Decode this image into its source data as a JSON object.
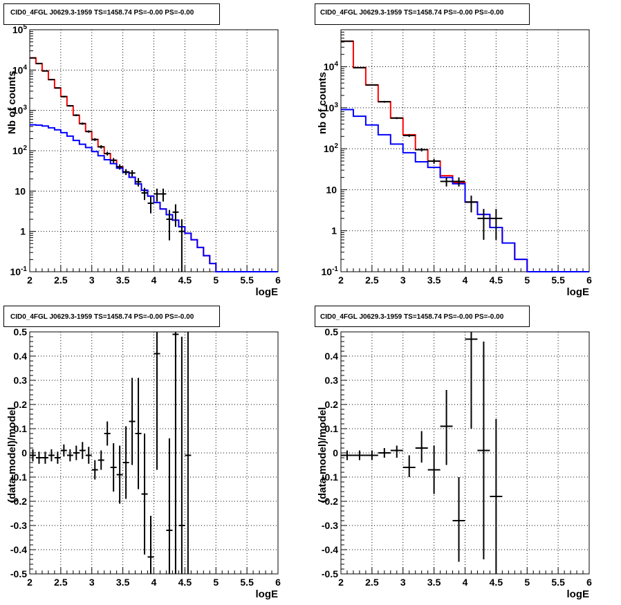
{
  "chart_data": [
    {
      "type": "line",
      "title": "CID0_4FGL J0629.3-1959 TS=1458.74 PS=-0.00 PS=-0.00",
      "xlabel": "logE",
      "ylabel": "Nb of counts",
      "xlim": [
        2,
        6
      ],
      "ylim": [
        0.1,
        100000
      ],
      "yscale": "log",
      "grid": true,
      "x_ticks": [
        "2",
        "2.5",
        "3",
        "3.5",
        "4",
        "4.5",
        "5",
        "5.5",
        "6"
      ],
      "y_ticks": [
        "10^-1",
        "1",
        "10",
        "10^2",
        "10^3",
        "10^4",
        "10^5"
      ],
      "bin_edges": [
        2.0,
        2.1,
        2.2,
        2.3,
        2.4,
        2.5,
        2.6,
        2.7,
        2.8,
        2.9,
        3.0,
        3.1,
        3.2,
        3.3,
        3.4,
        3.5,
        3.6,
        3.7,
        3.8,
        3.9,
        4.0,
        4.1,
        4.2,
        4.3,
        4.4,
        4.5,
        4.6,
        4.7,
        4.8,
        4.9,
        5.0,
        5.1,
        5.2,
        5.3,
        5.4,
        5.5,
        5.6,
        5.7,
        5.8,
        5.9,
        6.0
      ],
      "series": [
        {
          "color": "#ff0000",
          "values": [
            20000,
            14500,
            9500,
            5800,
            3600,
            2200,
            1300,
            760,
            470,
            300,
            190,
            125,
            85,
            58,
            40,
            30,
            22,
            15,
            10.5,
            7.5,
            5.2,
            3.6,
            2.6,
            1.9,
            1.3,
            0.9,
            0.62,
            0.4,
            0.25,
            0.16,
            0.1,
            0.1,
            0.1,
            0.1,
            0.1,
            0.1,
            0.1,
            0.1,
            0.1,
            0.1
          ]
        },
        {
          "color": "#0000ff",
          "values": [
            440,
            430,
            410,
            370,
            330,
            280,
            230,
            180,
            145,
            120,
            95,
            75,
            60,
            48,
            37,
            29,
            22,
            15,
            10.5,
            7.5,
            5.2,
            3.6,
            2.6,
            1.9,
            1.3,
            0.9,
            0.62,
            0.4,
            0.25,
            0.16,
            0.1,
            0.1,
            0.1,
            0.1,
            0.1,
            0.1,
            0.1,
            0.1,
            0.1,
            0.1
          ]
        }
      ],
      "points": [
        {
          "x": 2.05,
          "y": 20000,
          "lo": 19600,
          "hi": 20400
        },
        {
          "x": 2.15,
          "y": 14500,
          "lo": 14200,
          "hi": 14800
        },
        {
          "x": 2.25,
          "y": 9500,
          "lo": 9300,
          "hi": 9700
        },
        {
          "x": 2.35,
          "y": 5800,
          "lo": 5650,
          "hi": 5950
        },
        {
          "x": 2.45,
          "y": 3600,
          "lo": 3480,
          "hi": 3720
        },
        {
          "x": 2.55,
          "y": 2200,
          "lo": 2110,
          "hi": 2290
        },
        {
          "x": 2.65,
          "y": 1300,
          "lo": 1240,
          "hi": 1360
        },
        {
          "x": 2.75,
          "y": 760,
          "lo": 720,
          "hi": 800
        },
        {
          "x": 2.85,
          "y": 470,
          "lo": 440,
          "hi": 500
        },
        {
          "x": 2.95,
          "y": 300,
          "lo": 280,
          "hi": 320
        },
        {
          "x": 3.05,
          "y": 190,
          "lo": 175,
          "hi": 205
        },
        {
          "x": 3.15,
          "y": 125,
          "lo": 113,
          "hi": 137
        },
        {
          "x": 3.25,
          "y": 85,
          "lo": 76,
          "hi": 94
        },
        {
          "x": 3.35,
          "y": 58,
          "lo": 50,
          "hi": 66
        },
        {
          "x": 3.45,
          "y": 40,
          "lo": 34,
          "hi": 46
        },
        {
          "x": 3.55,
          "y": 30,
          "lo": 25,
          "hi": 35
        },
        {
          "x": 3.65,
          "y": 28,
          "lo": 23,
          "hi": 33
        },
        {
          "x": 3.75,
          "y": 17,
          "lo": 13,
          "hi": 21
        },
        {
          "x": 3.85,
          "y": 9,
          "lo": 6,
          "hi": 12
        },
        {
          "x": 3.95,
          "y": 5,
          "lo": 2.8,
          "hi": 7.2
        },
        {
          "x": 4.05,
          "y": 8.5,
          "lo": 5.5,
          "hi": 11.5
        },
        {
          "x": 4.15,
          "y": 8.5,
          "lo": 5.5,
          "hi": 11.5
        },
        {
          "x": 4.25,
          "y": 2,
          "lo": 0.6,
          "hi": 3.4
        },
        {
          "x": 4.35,
          "y": 3,
          "lo": 1.3,
          "hi": 4.7
        },
        {
          "x": 4.45,
          "y": 1,
          "lo": 0.1,
          "hi": 2
        }
      ]
    },
    {
      "type": "line",
      "title": "CID0_4FGL J0629.3-1959 TS=1458.74 PS=-0.00 PS=-0.00",
      "xlabel": "logE",
      "ylabel": "nb of counts",
      "xlim": [
        2,
        6
      ],
      "ylim": [
        0.1,
        80000
      ],
      "yscale": "log",
      "grid": true,
      "x_ticks": [
        "2",
        "2.5",
        "3",
        "3.5",
        "4",
        "4.5",
        "5",
        "5.5",
        "6"
      ],
      "y_ticks": [
        "10^-1",
        "1",
        "10",
        "10^2",
        "10^3",
        "10^4"
      ],
      "bin_edges": [
        2.0,
        2.2,
        2.4,
        2.6,
        2.8,
        3.0,
        3.2,
        3.4,
        3.6,
        3.8,
        4.0,
        4.2,
        4.4,
        4.6,
        4.8,
        5.0,
        5.2,
        5.4,
        5.6,
        5.8,
        6.0
      ],
      "series": [
        {
          "color": "#ff0000",
          "values": [
            42000,
            9500,
            3600,
            1400,
            560,
            220,
            95,
            50,
            22,
            15,
            5,
            2.5,
            1.2,
            0.5,
            0.2,
            0.1,
            0.1,
            0.1,
            0.1,
            0.1
          ]
        },
        {
          "color": "#0000ff",
          "values": [
            900,
            620,
            380,
            220,
            130,
            80,
            48,
            35,
            20,
            14,
            5,
            2.5,
            1.2,
            0.5,
            0.2,
            0.1,
            0.1,
            0.1,
            0.1,
            0.1
          ]
        }
      ],
      "points": [
        {
          "x": 2.1,
          "y": 42000,
          "lo": 41600,
          "hi": 42400
        },
        {
          "x": 2.3,
          "y": 9500,
          "lo": 9300,
          "hi": 9700
        },
        {
          "x": 2.5,
          "y": 3600,
          "lo": 3480,
          "hi": 3720
        },
        {
          "x": 2.7,
          "y": 1400,
          "lo": 1330,
          "hi": 1470
        },
        {
          "x": 2.9,
          "y": 560,
          "lo": 530,
          "hi": 590
        },
        {
          "x": 3.1,
          "y": 210,
          "lo": 195,
          "hi": 225
        },
        {
          "x": 3.3,
          "y": 95,
          "lo": 86,
          "hi": 104
        },
        {
          "x": 3.5,
          "y": 50,
          "lo": 43,
          "hi": 57
        },
        {
          "x": 3.7,
          "y": 16,
          "lo": 12,
          "hi": 20
        },
        {
          "x": 3.9,
          "y": 16,
          "lo": 12,
          "hi": 20
        },
        {
          "x": 4.1,
          "y": 5,
          "lo": 2.8,
          "hi": 7.2
        },
        {
          "x": 4.3,
          "y": 2,
          "lo": 0.6,
          "hi": 3.4
        },
        {
          "x": 4.5,
          "y": 2,
          "lo": 0.6,
          "hi": 3.4
        }
      ]
    },
    {
      "type": "scatter",
      "title": "CID0_4FGL J0629.3-1959 TS=1458.74 PS=-0.00 PS=-0.00",
      "xlabel": "logE",
      "ylabel": "(data-model)/model",
      "xlim": [
        2,
        6
      ],
      "ylim": [
        -0.5,
        0.5
      ],
      "grid": true,
      "x_ticks": [
        "2",
        "2.5",
        "3",
        "3.5",
        "4",
        "4.5",
        "5",
        "5.5",
        "6"
      ],
      "y_ticks": [
        "-0.5",
        "-0.4",
        "-0.3",
        "-0.2",
        "-0.1",
        "0",
        "0.1",
        "0.2",
        "0.3",
        "0.4",
        "0.5"
      ],
      "points": [
        {
          "x": 2.05,
          "y": -0.01,
          "lo": -0.035,
          "hi": 0.015
        },
        {
          "x": 2.15,
          "y": -0.02,
          "lo": -0.045,
          "hi": 0.005
        },
        {
          "x": 2.25,
          "y": -0.02,
          "lo": -0.045,
          "hi": 0.005
        },
        {
          "x": 2.35,
          "y": -0.01,
          "lo": -0.035,
          "hi": 0.015
        },
        {
          "x": 2.45,
          "y": -0.02,
          "lo": -0.045,
          "hi": 0.005
        },
        {
          "x": 2.55,
          "y": 0.01,
          "lo": -0.015,
          "hi": 0.035
        },
        {
          "x": 2.65,
          "y": -0.01,
          "lo": -0.035,
          "hi": 0.015
        },
        {
          "x": 2.75,
          "y": 0.0,
          "lo": -0.03,
          "hi": 0.03
        },
        {
          "x": 2.85,
          "y": 0.01,
          "lo": -0.025,
          "hi": 0.045
        },
        {
          "x": 2.95,
          "y": -0.01,
          "lo": -0.045,
          "hi": 0.025
        },
        {
          "x": 3.05,
          "y": -0.07,
          "lo": -0.11,
          "hi": -0.03
        },
        {
          "x": 3.15,
          "y": -0.03,
          "lo": -0.07,
          "hi": 0.01
        },
        {
          "x": 3.25,
          "y": 0.08,
          "lo": 0.03,
          "hi": 0.13
        },
        {
          "x": 3.35,
          "y": -0.06,
          "lo": -0.16,
          "hi": 0.04
        },
        {
          "x": 3.45,
          "y": -0.09,
          "lo": -0.21,
          "hi": 0.03
        },
        {
          "x": 3.55,
          "y": -0.04,
          "lo": -0.19,
          "hi": 0.11
        },
        {
          "x": 3.65,
          "y": 0.13,
          "lo": -0.05,
          "hi": 0.31
        },
        {
          "x": 3.75,
          "y": 0.08,
          "lo": -0.15,
          "hi": 0.31
        },
        {
          "x": 3.85,
          "y": -0.17,
          "lo": -0.42,
          "hi": 0.08
        },
        {
          "x": 3.95,
          "y": -0.43,
          "lo": -0.5,
          "hi": -0.26
        },
        {
          "x": 4.05,
          "y": 0.41,
          "lo": -0.07,
          "hi": 0.5
        },
        {
          "x": 4.25,
          "y": -0.32,
          "lo": -0.5,
          "hi": 0.06
        },
        {
          "x": 4.35,
          "y": 0.49,
          "lo": -0.5,
          "hi": 0.5
        },
        {
          "x": 4.45,
          "y": -0.3,
          "lo": -0.5,
          "hi": 0.48
        },
        {
          "x": 4.55,
          "y": -0.01,
          "lo": -0.5,
          "hi": 0.5
        }
      ]
    },
    {
      "type": "scatter",
      "title": "CID0_4FGL J0629.3-1959 TS=1458.74 PS=-0.00 PS=-0.00",
      "xlabel": "logE",
      "ylabel": "(data-model)/model",
      "xlim": [
        2,
        6
      ],
      "ylim": [
        -0.5,
        0.5
      ],
      "grid": true,
      "x_ticks": [
        "2",
        "2.5",
        "3",
        "3.5",
        "4",
        "4.5",
        "5",
        "5.5",
        "6"
      ],
      "y_ticks": [
        "-0.5",
        "-0.4",
        "-0.3",
        "-0.2",
        "-0.1",
        "0",
        "0.1",
        "0.2",
        "0.3",
        "0.4",
        "0.5"
      ],
      "points": [
        {
          "x": 2.1,
          "y": -0.01,
          "lo": -0.03,
          "hi": 0.01
        },
        {
          "x": 2.3,
          "y": -0.01,
          "lo": -0.03,
          "hi": 0.01
        },
        {
          "x": 2.5,
          "y": -0.01,
          "lo": -0.03,
          "hi": 0.01
        },
        {
          "x": 2.7,
          "y": 0.0,
          "lo": -0.02,
          "hi": 0.02
        },
        {
          "x": 2.9,
          "y": 0.01,
          "lo": -0.02,
          "hi": 0.03
        },
        {
          "x": 3.1,
          "y": -0.06,
          "lo": -0.1,
          "hi": -0.01
        },
        {
          "x": 3.3,
          "y": 0.02,
          "lo": -0.04,
          "hi": 0.09
        },
        {
          "x": 3.5,
          "y": -0.07,
          "lo": -0.17,
          "hi": 0.03
        },
        {
          "x": 3.7,
          "y": 0.11,
          "lo": -0.05,
          "hi": 0.26
        },
        {
          "x": 3.9,
          "y": -0.28,
          "lo": -0.45,
          "hi": -0.1
        },
        {
          "x": 4.1,
          "y": 0.47,
          "lo": 0.1,
          "hi": 0.5
        },
        {
          "x": 4.3,
          "y": 0.01,
          "lo": -0.44,
          "hi": 0.46
        },
        {
          "x": 4.5,
          "y": -0.18,
          "lo": -0.5,
          "hi": 0.14
        }
      ]
    }
  ]
}
